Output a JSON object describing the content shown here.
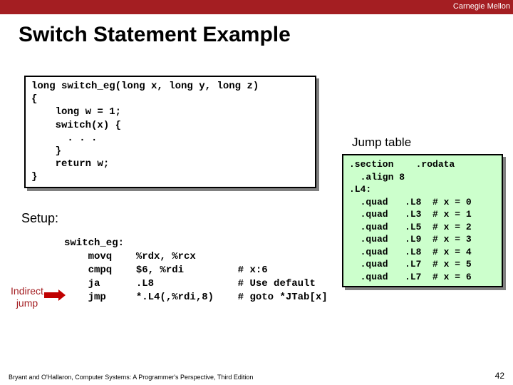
{
  "header": {
    "brand": "Carnegie Mellon"
  },
  "title": "Switch Statement Example",
  "c_source": "long switch_eg(long x, long y, long z)\n{\n    long w = 1;\n    switch(x) {\n      . . .\n    }\n    return w;\n}",
  "jump_title": "Jump table",
  "jump_table": ".section    .rodata\n  .align 8\n.L4:\n  .quad   .L8  # x = 0\n  .quad   .L3  # x = 1\n  .quad   .L5  # x = 2\n  .quad   .L9  # x = 3\n  .quad   .L8  # x = 4\n  .quad   .L7  # x = 5\n  .quad   .L7  # x = 6",
  "setup_label": "Setup:",
  "asm": "switch_eg:\n    movq    %rdx, %rcx\n    cmpq    $6, %rdi         # x:6\n    ja      .L8              # Use default\n    jmp     *.L4(,%rdi,8)    # goto *JTab[x]",
  "indirect_label_l1": "Indirect",
  "indirect_label_l2": "jump",
  "footer": "Bryant and O'Hallaron, Computer Systems: A Programmer's Perspective, Third Edition",
  "page": "42",
  "colors": {
    "topbar": "#a41e22",
    "jump_bg": "#ccffcc",
    "arrow": "#c00000"
  }
}
